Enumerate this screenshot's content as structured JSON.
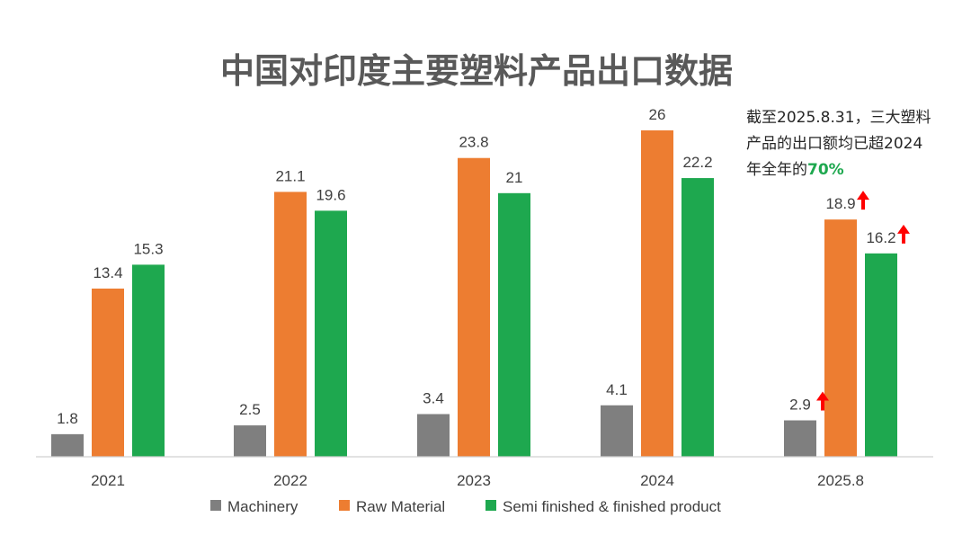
{
  "chart_data": {
    "type": "bar",
    "title": "中国对印度主要塑料产品出口数据",
    "categories": [
      "2021",
      "2022",
      "2023",
      "2024",
      "2025.8"
    ],
    "series": [
      {
        "name": "Machinery",
        "color": "#7f7f7f",
        "values": [
          1.8,
          2.5,
          3.4,
          4.1,
          2.9
        ]
      },
      {
        "name": "Raw Material",
        "color": "#ed7d31",
        "values": [
          13.4,
          21.1,
          23.8,
          26,
          18.9
        ]
      },
      {
        "name": "Semi finished & finished product",
        "color": "#1ea84f",
        "values": [
          15.3,
          19.6,
          21,
          22.2,
          16.2
        ]
      }
    ],
    "data_labels": [
      [
        "1.8",
        "2.5",
        "3.4",
        "4.1",
        "2.9"
      ],
      [
        "13.4",
        "21.1",
        "23.8",
        "26",
        "18.9"
      ],
      [
        "15.3",
        "19.6",
        "21",
        "22.2",
        "16.2"
      ]
    ],
    "ylim": [
      0,
      30
    ],
    "grid": false,
    "legend_position": "bottom",
    "annotation": {
      "lines": [
        "截至2025.8.31，三大塑料",
        "产品的出口额均已超2024"
      ],
      "last_line_prefix": "年全年的",
      "highlight": "70%",
      "highlight_color": "#1ea84f",
      "arrow_color": "#ff0000",
      "arrow_icon": "up-arrow-icon"
    }
  }
}
